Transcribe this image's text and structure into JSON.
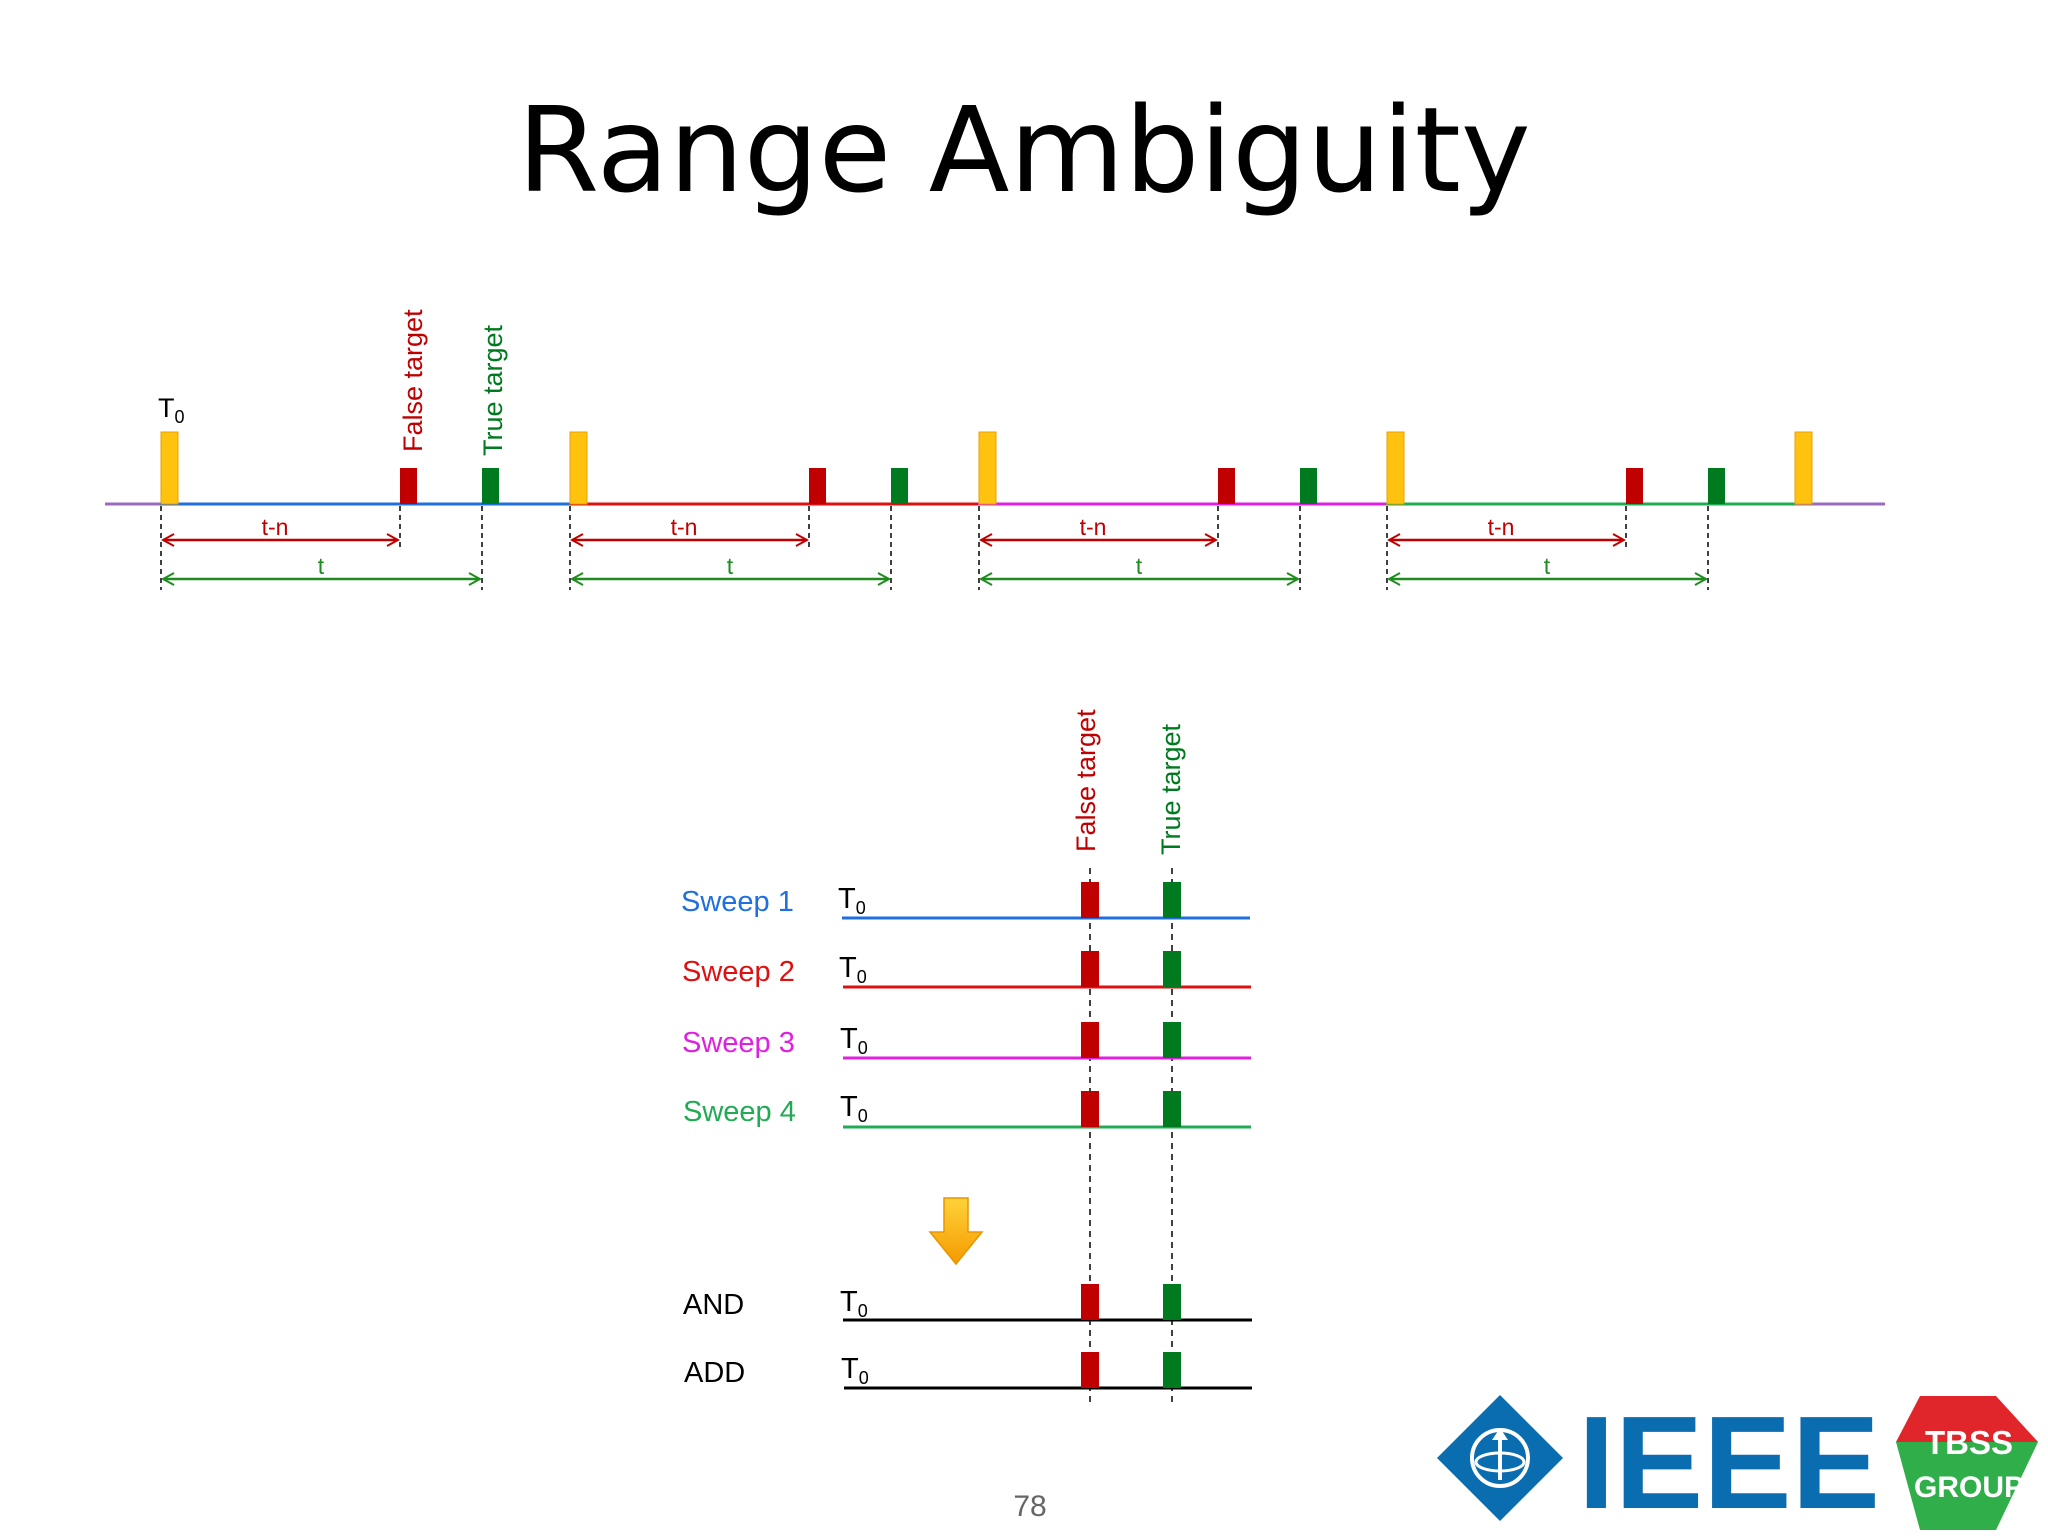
{
  "title": "Range Ambiguity",
  "page_number": "78",
  "colors": {
    "sweep1": "#1f6fe0",
    "sweep2": "#dd1111",
    "sweep3": "#e020e0",
    "sweep4": "#22aa55",
    "baseline_end": "#9a6bbd",
    "transmit_pulse": "#ffc20e",
    "false_target": "#c00000",
    "true_target": "#007a1e",
    "arrow_tn": "#c00000",
    "arrow_t": "#1e8c1e",
    "ieee_blue": "#0a6db0",
    "tbss_red": "#e0262b",
    "tbss_green": "#2fae4a"
  },
  "top_diagram": {
    "t0_label": "T",
    "t0_sub": "0",
    "false_target_label": "False target",
    "true_target_label": "True target",
    "periods": [
      {
        "tn_label": "t-n",
        "t_label": "t"
      },
      {
        "tn_label": "t-n",
        "t_label": "t"
      },
      {
        "tn_label": "t-n",
        "t_label": "t"
      },
      {
        "tn_label": "t-n",
        "t_label": "t"
      }
    ]
  },
  "bottom_diagram": {
    "false_target_label": "False target",
    "true_target_label": "True target",
    "rows": [
      {
        "label": "Sweep 1",
        "t0": "T",
        "sub": "0",
        "color_key": "sweep1"
      },
      {
        "label": "Sweep 2",
        "t0": "T",
        "sub": "0",
        "color_key": "sweep2"
      },
      {
        "label": "Sweep 3",
        "t0": "T",
        "sub": "0",
        "color_key": "sweep3"
      },
      {
        "label": "Sweep 4",
        "t0": "T",
        "sub": "0",
        "color_key": "sweep4"
      },
      {
        "label": "AND",
        "t0": "T",
        "sub": "0",
        "color_key": "black"
      },
      {
        "label": "ADD",
        "t0": "T",
        "sub": "0",
        "color_key": "black"
      }
    ],
    "arrow_icon": "down-arrow-icon"
  },
  "logos": {
    "ieee_text": "IEEE",
    "tbss_top": "TBSS",
    "tbss_bottom": "GROUP"
  }
}
